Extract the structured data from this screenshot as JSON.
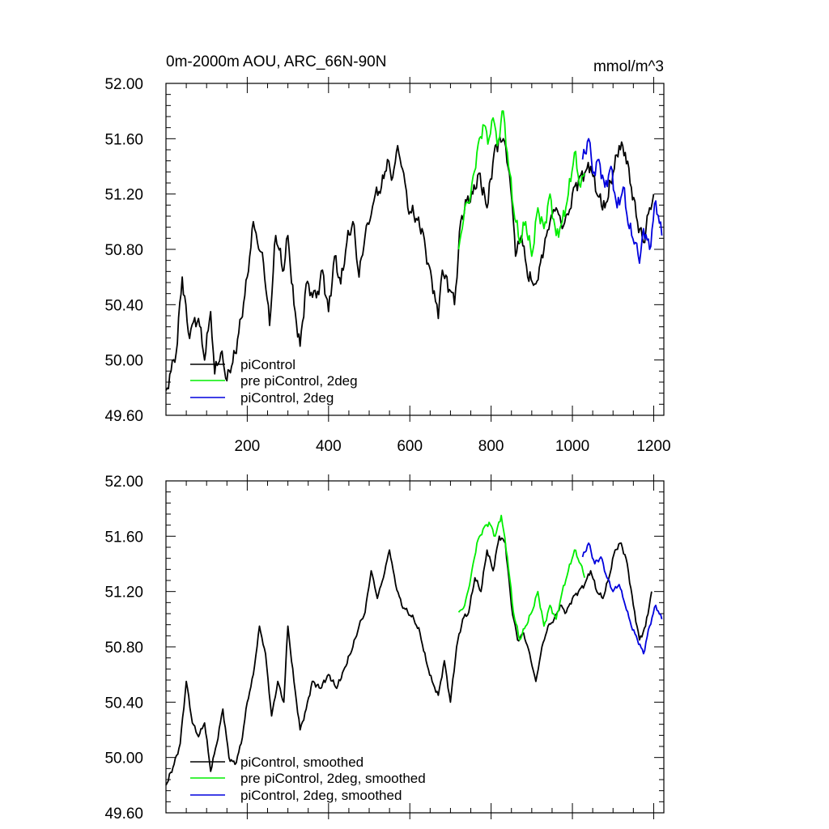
{
  "chart_data": [
    {
      "type": "line",
      "title": "0m-2000m AOU, ARC_66N-90N",
      "units": "mmol/m^3",
      "xlim": [
        0,
        1225
      ],
      "ylim": [
        49.6,
        52.0
      ],
      "xticks": [
        200,
        400,
        600,
        800,
        1000,
        1200
      ],
      "xtick_labels": [
        "200",
        "400",
        "600",
        "800",
        "1000",
        "1200"
      ],
      "yticks": [
        49.6,
        50.0,
        50.4,
        50.8,
        51.2,
        51.6,
        52.0
      ],
      "ytick_labels": [
        "49.60",
        "50.00",
        "50.40",
        "50.80",
        "51.20",
        "51.60",
        "52.00"
      ],
      "legend_position": "bottom-left",
      "series": [
        {
          "name": "piControl",
          "color": "#000000",
          "x": [
            0,
            25,
            40,
            55,
            80,
            95,
            110,
            120,
            135,
            150,
            170,
            185,
            200,
            215,
            225,
            240,
            255,
            270,
            290,
            300,
            315,
            330,
            345,
            370,
            385,
            400,
            415,
            430,
            445,
            460,
            475,
            490,
            505,
            515,
            530,
            545,
            555,
            570,
            585,
            595,
            610,
            630,
            645,
            660,
            670,
            680,
            700,
            710,
            725,
            740,
            755,
            770,
            790,
            810,
            830,
            845,
            855,
            860,
            875,
            890,
            910,
            930,
            945,
            960,
            975,
            990,
            1000,
            1015,
            1030,
            1045,
            1060,
            1080,
            1100,
            1115,
            1130,
            1145,
            1160,
            1175,
            1190,
            1200
          ],
          "y": [
            49.78,
            50.05,
            50.6,
            50.2,
            50.3,
            50.0,
            50.35,
            49.9,
            50.05,
            49.85,
            50.05,
            50.3,
            50.6,
            51.0,
            50.85,
            50.7,
            50.25,
            50.9,
            50.65,
            50.9,
            50.4,
            50.1,
            50.55,
            50.45,
            50.65,
            50.35,
            50.75,
            50.55,
            50.85,
            51.0,
            50.6,
            50.9,
            51.05,
            51.2,
            51.25,
            51.45,
            51.3,
            51.55,
            51.35,
            51.1,
            51.05,
            50.95,
            50.7,
            50.5,
            50.3,
            50.65,
            50.5,
            50.4,
            51.0,
            51.15,
            51.2,
            51.35,
            51.1,
            51.55,
            51.6,
            51.35,
            51.0,
            50.75,
            50.9,
            50.6,
            50.55,
            50.8,
            51.0,
            51.1,
            50.95,
            51.05,
            51.2,
            51.3,
            51.35,
            51.4,
            51.2,
            51.1,
            51.35,
            51.55,
            51.5,
            51.25,
            51.0,
            50.85,
            51.1,
            51.2
          ]
        },
        {
          "name": "pre piControl, 2deg",
          "color": "#00ee00",
          "x": [
            720,
            735,
            750,
            765,
            780,
            795,
            805,
            815,
            830,
            840,
            855,
            870,
            885,
            900,
            915,
            930,
            945,
            960,
            975,
            990,
            1005,
            1020,
            1030
          ],
          "y": [
            50.8,
            51.1,
            51.2,
            51.5,
            51.7,
            51.6,
            51.75,
            51.55,
            51.8,
            51.5,
            51.1,
            50.85,
            51.0,
            50.75,
            51.1,
            50.95,
            51.2,
            50.9,
            51.0,
            51.2,
            51.5,
            51.25,
            51.35
          ]
        },
        {
          "name": "piControl, 2deg",
          "color": "#0000dd",
          "x": [
            1025,
            1040,
            1050,
            1065,
            1080,
            1095,
            1110,
            1125,
            1140,
            1155,
            1165,
            1175,
            1190,
            1205,
            1220
          ],
          "y": [
            51.45,
            51.6,
            51.35,
            51.45,
            51.25,
            51.4,
            51.1,
            51.25,
            50.95,
            50.85,
            50.7,
            50.95,
            50.8,
            51.15,
            50.9
          ]
        }
      ]
    },
    {
      "type": "line",
      "title": "",
      "units": "",
      "xlim": [
        0,
        1225
      ],
      "ylim": [
        49.6,
        52.0
      ],
      "yticks": [
        49.6,
        50.0,
        50.4,
        50.8,
        51.2,
        51.6,
        52.0
      ],
      "ytick_labels": [
        "49.60",
        "50.00",
        "50.40",
        "50.80",
        "51.20",
        "51.60",
        "52.00"
      ],
      "legend_position": "bottom-left",
      "series": [
        {
          "name": "piControl, smoothed",
          "color": "#000000",
          "x": [
            0,
            20,
            35,
            50,
            65,
            80,
            95,
            110,
            125,
            140,
            155,
            170,
            185,
            200,
            215,
            230,
            245,
            260,
            275,
            290,
            300,
            315,
            330,
            345,
            360,
            380,
            400,
            420,
            440,
            460,
            475,
            490,
            505,
            520,
            535,
            550,
            565,
            580,
            595,
            610,
            625,
            640,
            655,
            670,
            685,
            700,
            715,
            730,
            745,
            760,
            775,
            790,
            805,
            820,
            835,
            850,
            865,
            880,
            895,
            910,
            925,
            940,
            955,
            970,
            985,
            1000,
            1015,
            1030,
            1045,
            1060,
            1075,
            1090,
            1105,
            1120,
            1135,
            1150,
            1165,
            1180,
            1195
          ],
          "y": [
            49.8,
            49.95,
            50.1,
            50.55,
            50.25,
            50.15,
            50.25,
            49.9,
            50.1,
            50.35,
            50.0,
            49.95,
            50.1,
            50.4,
            50.6,
            50.95,
            50.75,
            50.3,
            50.55,
            50.4,
            50.95,
            50.55,
            50.2,
            50.35,
            50.55,
            50.5,
            50.6,
            50.5,
            50.65,
            50.8,
            50.95,
            51.05,
            51.35,
            51.15,
            51.3,
            51.5,
            51.25,
            51.1,
            51.05,
            51.0,
            50.9,
            50.7,
            50.55,
            50.45,
            50.7,
            50.4,
            50.8,
            51.0,
            51.05,
            51.3,
            51.2,
            51.5,
            51.35,
            51.6,
            51.55,
            51.1,
            50.85,
            50.9,
            50.75,
            50.55,
            50.8,
            50.95,
            51.0,
            51.1,
            51.05,
            51.15,
            51.2,
            51.25,
            51.35,
            51.2,
            51.15,
            51.3,
            51.5,
            51.55,
            51.4,
            51.1,
            50.85,
            50.95,
            51.2
          ]
        },
        {
          "name": "pre piControl, 2deg, smoothed",
          "color": "#00ee00",
          "x": [
            720,
            735,
            750,
            765,
            780,
            795,
            810,
            825,
            840,
            855,
            870,
            885,
            900,
            915,
            930,
            945,
            960,
            975,
            990,
            1005,
            1020,
            1030
          ],
          "y": [
            51.05,
            51.1,
            51.3,
            51.55,
            51.65,
            51.7,
            51.6,
            51.75,
            51.45,
            51.05,
            50.85,
            50.95,
            51.05,
            51.2,
            50.95,
            51.1,
            51.0,
            51.2,
            51.35,
            51.5,
            51.4,
            51.3
          ]
        },
        {
          "name": "piControl, 2deg, smoothed",
          "color": "#0000dd",
          "x": [
            1025,
            1040,
            1055,
            1070,
            1085,
            1100,
            1115,
            1130,
            1145,
            1160,
            1175,
            1190,
            1205,
            1220
          ],
          "y": [
            51.45,
            51.55,
            51.4,
            51.45,
            51.3,
            51.2,
            51.25,
            51.1,
            50.95,
            50.85,
            50.75,
            50.95,
            51.1,
            51.0
          ]
        }
      ]
    }
  ]
}
